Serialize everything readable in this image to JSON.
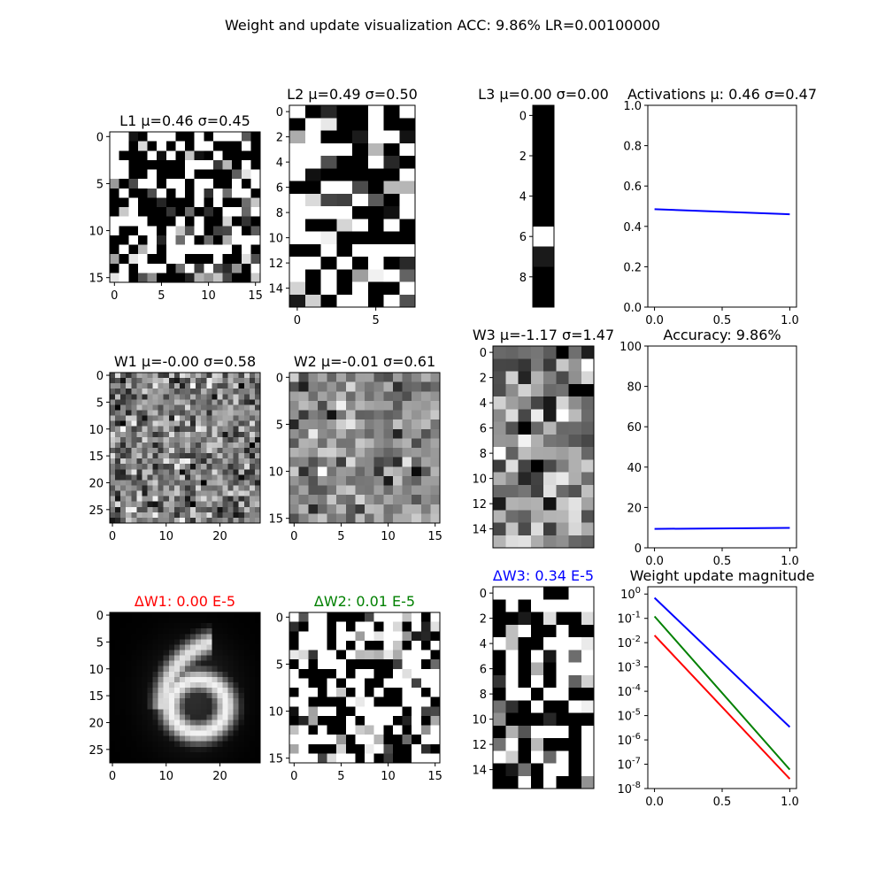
{
  "figure": {
    "title": "Weight and update visualization ACC: 9.86% LR=0.00100000"
  },
  "chart_data": [
    {
      "id": "L1",
      "type": "heatmap",
      "title_name": "L1",
      "title_stats": "μ=0.46 σ=0.45",
      "title_color": "#000000",
      "rows": 16,
      "cols": 16,
      "colormap": "gray",
      "xticks": [
        0,
        5,
        10,
        15
      ],
      "yticks": [
        0,
        5,
        10,
        15
      ],
      "pattern": "binary_noise",
      "seed": 11,
      "mean": 0.46
    },
    {
      "id": "L2",
      "type": "heatmap",
      "title_name": "L2",
      "title_stats": "μ=0.49 σ=0.50",
      "title_color": "#000000",
      "rows": 16,
      "cols": 8,
      "colormap": "gray",
      "xticks": [
        0,
        5
      ],
      "yticks": [
        0,
        2,
        4,
        6,
        8,
        10,
        12,
        14
      ],
      "pattern": "binary_noise",
      "seed": 23,
      "mean": 0.49
    },
    {
      "id": "L3",
      "type": "heatmap",
      "title_name": "L3",
      "title_stats": "μ=0.00 σ=0.00",
      "title_color": "#000000",
      "rows": 10,
      "cols": 1,
      "colormap": "gray",
      "xticks": [],
      "yticks": [
        0,
        2,
        4,
        6,
        8
      ],
      "values": [
        [
          0
        ],
        [
          0
        ],
        [
          0
        ],
        [
          0
        ],
        [
          0
        ],
        [
          0
        ],
        [
          1
        ],
        [
          0.1
        ],
        [
          0
        ],
        [
          0
        ]
      ]
    },
    {
      "id": "ACT",
      "type": "line",
      "title": "Activations μ: 0.46 σ=0.47",
      "xlim": [
        0,
        1
      ],
      "ylim": [
        0,
        1
      ],
      "log_y": false,
      "xticks": [
        "0.0",
        "0.5",
        "1.0"
      ],
      "yticks": [
        "0.0",
        "0.2",
        "0.4",
        "0.6",
        "0.8",
        "1.0"
      ],
      "series": [
        {
          "x": [
            0,
            1
          ],
          "y": [
            0.485,
            0.46
          ],
          "color": "#0000ff"
        }
      ]
    },
    {
      "id": "W1",
      "type": "heatmap",
      "title_name": "W1",
      "title_stats": "μ=-0.00 σ=0.58",
      "title_color": "#000000",
      "rows": 28,
      "cols": 28,
      "colormap": "gray",
      "xticks": [
        0,
        10,
        20
      ],
      "yticks": [
        0,
        5,
        10,
        15,
        20,
        25
      ],
      "pattern": "gauss_noise",
      "seed": 37,
      "mean": 0.5,
      "spread": 0.2
    },
    {
      "id": "W2",
      "type": "heatmap",
      "title_name": "W2",
      "title_stats": "μ=-0.01 σ=0.61",
      "title_color": "#000000",
      "rows": 16,
      "cols": 16,
      "colormap": "gray",
      "xticks": [
        0,
        5,
        10,
        15
      ],
      "yticks": [
        0,
        5,
        10,
        15
      ],
      "pattern": "gauss_noise",
      "seed": 53,
      "mean": 0.55,
      "spread": 0.18
    },
    {
      "id": "W3",
      "type": "heatmap",
      "title_name": "W3",
      "title_stats": "μ=-1.17 σ=1.47",
      "title_color": "#000000",
      "rows": 16,
      "cols": 8,
      "colormap": "gray",
      "xticks": [],
      "yticks": [
        0,
        2,
        4,
        6,
        8,
        10,
        12,
        14
      ],
      "pattern": "gauss_noise",
      "seed": 71,
      "mean": 0.5,
      "spread": 0.28
    },
    {
      "id": "ACC",
      "type": "line",
      "title": "Accuracy: 9.86%",
      "xlim": [
        0,
        1
      ],
      "ylim": [
        0,
        100
      ],
      "log_y": false,
      "xticks": [
        "0.0",
        "0.5",
        "1.0"
      ],
      "yticks": [
        "0",
        "20",
        "40",
        "60",
        "80",
        "100"
      ],
      "series": [
        {
          "x": [
            0,
            1
          ],
          "y": [
            9.4,
            9.86
          ],
          "color": "#0000ff"
        }
      ]
    },
    {
      "id": "dW1",
      "type": "heatmap",
      "title_name": "ΔW1",
      "title_stats": ": 0.00 E-5",
      "title_color": "#ff0000",
      "rows": 28,
      "cols": 28,
      "colormap": "gray",
      "xticks": [
        0,
        10,
        20
      ],
      "yticks": [
        0,
        5,
        10,
        15,
        20,
        25
      ],
      "pattern": "digit_six"
    },
    {
      "id": "dW2",
      "type": "heatmap",
      "title_name": "ΔW2",
      "title_stats": ": 0.01 E-5",
      "title_color": "#008000",
      "rows": 16,
      "cols": 16,
      "colormap": "gray",
      "xticks": [
        0,
        5,
        10,
        15
      ],
      "yticks": [
        0,
        5,
        10,
        15
      ],
      "pattern": "binary_noise",
      "seed": 89,
      "mean": 0.55
    },
    {
      "id": "dW3",
      "type": "heatmap",
      "title_name": "ΔW3",
      "title_stats": ": 0.34 E-5",
      "title_color": "#0000ff",
      "rows": 16,
      "cols": 8,
      "colormap": "gray",
      "xticks": [],
      "yticks": [
        0,
        2,
        4,
        6,
        8,
        10,
        12,
        14
      ],
      "pattern": "binary_noise",
      "seed": 97,
      "mean": 0.5
    },
    {
      "id": "WUM",
      "type": "line",
      "title": "Weight update magnitude",
      "xlim": [
        0,
        1
      ],
      "ylim": [
        -8,
        0.3
      ],
      "log_y": true,
      "xticks": [
        "0.0",
        "0.5",
        "1.0"
      ],
      "ytick_exponents": [
        "0",
        "-1",
        "-2",
        "-3",
        "-4",
        "-5",
        "-6",
        "-7",
        "-8"
      ],
      "series": [
        {
          "x": [
            0,
            1
          ],
          "y": [
            0.7,
            3.4e-06
          ],
          "color": "#0000ff"
        },
        {
          "x": [
            0,
            1
          ],
          "y": [
            0.12,
            6e-08
          ],
          "color": "#008000"
        },
        {
          "x": [
            0,
            1
          ],
          "y": [
            0.02,
            2.5e-08
          ],
          "color": "#ff0000"
        }
      ]
    }
  ]
}
